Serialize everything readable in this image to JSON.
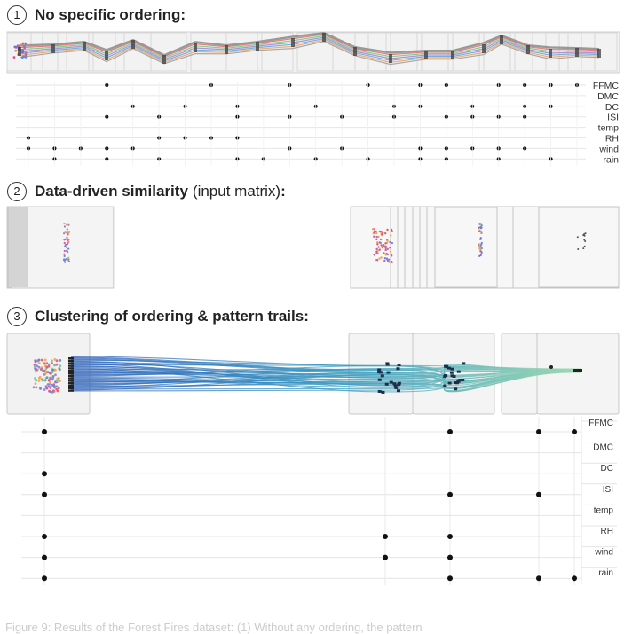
{
  "section1": {
    "number": "1",
    "title": "No specific ordering:"
  },
  "section2": {
    "number": "2",
    "title_bold": "Data-driven similarity",
    "title_normal": "(input matrix)",
    "title_colon": ":"
  },
  "section3": {
    "number": "3",
    "title": "Clustering of ordering & pattern trails:"
  },
  "variables": [
    "FFMC",
    "DMC",
    "DC",
    "ISI",
    "temp",
    "RH",
    "wind",
    "rain"
  ],
  "panel1_matrix": {
    "columns": 22,
    "rows": {
      "FFMC": [
        3,
        7,
        10,
        13,
        15,
        16,
        18,
        19,
        20,
        21
      ],
      "DMC": [],
      "DC": [
        4,
        6,
        8,
        11,
        14,
        15,
        17,
        19,
        20
      ],
      "ISI": [
        3,
        5,
        8,
        10,
        12,
        14,
        16,
        17,
        18,
        19
      ],
      "temp": [],
      "RH": [
        0,
        5,
        6,
        7,
        8
      ],
      "wind": [
        0,
        1,
        2,
        3,
        4,
        10,
        12,
        15,
        16,
        17,
        18,
        19
      ],
      "rain": [
        1,
        3,
        5,
        8,
        9,
        11,
        13,
        15,
        16,
        18,
        20
      ]
    }
  },
  "panel3_matrix": {
    "columns": [
      "c1",
      "c2",
      "c3",
      "c4",
      "c5"
    ],
    "rows": {
      "FFMC": [
        "c1",
        "c3",
        "c4",
        "c5"
      ],
      "DMC": [],
      "DC": [
        "c1"
      ],
      "ISI": [
        "c1",
        "c3",
        "c4"
      ],
      "temp": [],
      "RH": [
        "c1",
        "c2",
        "c3"
      ],
      "wind": [
        "c1",
        "c2",
        "c3"
      ],
      "rain": [
        "c1",
        "c3",
        "c4",
        "c5"
      ]
    }
  },
  "colors": {
    "trail_start": "#2c7bb6",
    "trail_mid": "#41b6c4",
    "trail_end": "#a1dab4",
    "dot": "#111111"
  },
  "caption": "Figure 9: Results of the Forest Fires dataset: (1) Without any ordering, the pattern"
}
